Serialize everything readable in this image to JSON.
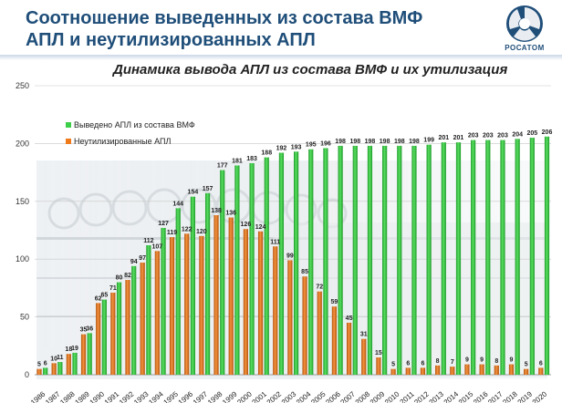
{
  "slide": {
    "title": "Соотношение выведенных из состава ВМФ АПЛ и неутилизированных АПЛ",
    "logo_text": "РОСАТОМ"
  },
  "colors": {
    "title": "#1f4e79",
    "green": "#3ecf4a",
    "green_dark": "#1f9a2a",
    "orange": "#f07a1a",
    "orange_dark": "#b2530c"
  },
  "chart_data": {
    "type": "bar",
    "title": "Динамика вывода АПЛ из состава ВМФ и их утилизация",
    "xlabel": "",
    "ylabel": "",
    "ylim": [
      0,
      250
    ],
    "yticks": [
      0,
      50,
      100,
      150,
      200,
      250
    ],
    "legend_position": "top-left",
    "categories": [
      "1986",
      "1987",
      "1988",
      "1989",
      "1990",
      "1991",
      "1992",
      "1993",
      "1994",
      "1995",
      "1996",
      "1997",
      "1998",
      "1999",
      "2000",
      "2001",
      "2002",
      "2003",
      "2004",
      "2005",
      "2006",
      "2007",
      "2008",
      "2009",
      "2010",
      "2011",
      "2012",
      "2013",
      "2014",
      "2015",
      "2016",
      "2017",
      "2018",
      "2019",
      "2020"
    ],
    "series": [
      {
        "name": "Выведено АПЛ из состава ВМФ",
        "color": "#3ecf4a",
        "values": [
          6,
          11,
          19,
          36,
          65,
          80,
          94,
          112,
          127,
          144,
          154,
          157,
          177,
          181,
          183,
          188,
          192,
          193,
          195,
          196,
          198,
          198,
          198,
          198,
          198,
          198,
          199,
          201,
          201,
          203,
          203,
          203,
          204,
          205,
          206
        ]
      },
      {
        "name": "Неутилизированные АПЛ",
        "color": "#f07a1a",
        "values": [
          5,
          10,
          18,
          35,
          62,
          71,
          82,
          97,
          107,
          119,
          122,
          120,
          138,
          136,
          126,
          124,
          111,
          99,
          85,
          72,
          59,
          45,
          31,
          15,
          5,
          6,
          6,
          8,
          7,
          9,
          9,
          8,
          9,
          5,
          6
        ]
      }
    ]
  }
}
